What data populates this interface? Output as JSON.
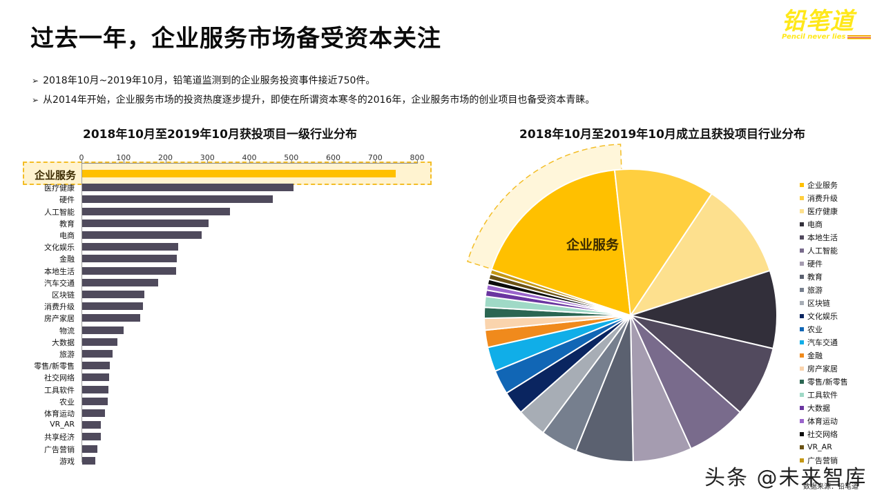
{
  "header": {
    "title": "过去一年，企业服务市场备受资本关注",
    "logo_cn": "铅笔道",
    "logo_en": "Pencil never lies"
  },
  "bullets": [
    "2018年10月~2019年10月，铅笔道监测到的企业服务投资事件接近750件。",
    "从2014年开始，企业服务市场的投资热度逐步提升，即使在所谓资本寒冬的2016年，企业服务市场的创业项目也备受资本青睐。"
  ],
  "bullet_icon": "arrow-bullet-icon",
  "colors": {
    "accent_yellow": "#ffc000",
    "bar_dark": "#4f4a5c",
    "highlight_fill": "#fff0c8",
    "highlight_border": "#f3bd25"
  },
  "chart_data": [
    {
      "type": "bar",
      "orientation": "horizontal",
      "title": "2018年10月至2019年10月获投项目一级行业分布",
      "xlabel": "",
      "ylabel": "",
      "xlim": [
        0,
        800
      ],
      "xticks": [
        0,
        100,
        200,
        300,
        400,
        500,
        600,
        700,
        800
      ],
      "grid": false,
      "axis_position": "top",
      "highlight": "企业服务",
      "categories": [
        "企业服务",
        "医疗健康",
        "硬件",
        "人工智能",
        "教育",
        "电商",
        "文化娱乐",
        "金融",
        "本地生活",
        "汽车交通",
        "区块链",
        "消费升级",
        "房产家居",
        "物流",
        "大数据",
        "旅游",
        "零售/新零售",
        "社交网络",
        "工具软件",
        "农业",
        "体育运动",
        "VR_AR",
        "共享经济",
        "广告营销",
        "游戏"
      ],
      "values": [
        747,
        504,
        455,
        353,
        301,
        285,
        229,
        226,
        224,
        181,
        148,
        145,
        139,
        99,
        84,
        72,
        66,
        65,
        63,
        61,
        55,
        44,
        44,
        37,
        31
      ]
    },
    {
      "type": "pie",
      "title": "2018年10月至2019年10月成立且获投项目行业分布",
      "legend_position": "right",
      "highlight": "企业服务",
      "highlight_label": "企业服务",
      "start_angle_deg": -71.7,
      "categories": [
        "企业服务",
        "消费升级",
        "医疗健康",
        "电商",
        "本地生活",
        "人工智能",
        "硬件",
        "教育",
        "旅游",
        "区块链",
        "文化娱乐",
        "农业",
        "汽车交通",
        "金融",
        "房产家居",
        "零售/新零售",
        "工具软件",
        "大数据",
        "体育运动",
        "社交网络",
        "VR_AR",
        "广告营销"
      ],
      "values": [
        18.2,
        11.1,
        10.7,
        8.6,
        7.9,
        6.7,
        6.5,
        6.4,
        4.1,
        3.3,
        2.6,
        2.7,
        2.7,
        1.9,
        1.3,
        1.2,
        1.2,
        0.7,
        0.6,
        0.6,
        0.6,
        0.5
      ],
      "colors": [
        "#ffc000",
        "#ffcf3f",
        "#fde08e",
        "#322f3a",
        "#524a5e",
        "#796b8c",
        "#a59cb0",
        "#5b6170",
        "#767f8e",
        "#a7adb5",
        "#0a2560",
        "#1166b5",
        "#10aee8",
        "#f08a1c",
        "#fad4ad",
        "#2b6652",
        "#9fd9c6",
        "#6a35a0",
        "#9b65cc",
        "#0b0b0b",
        "#6b5214",
        "#c49714"
      ]
    }
  ],
  "legend": {
    "items": [
      "企业服务",
      "消费升级",
      "医疗健康",
      "电商",
      "本地生活",
      "人工智能",
      "硬件",
      "教育",
      "旅游",
      "区块链",
      "文化娱乐",
      "农业",
      "汽车交通",
      "金融",
      "房产家居",
      "零售/新零售",
      "工具软件",
      "大数据",
      "体育运动",
      "社交网络",
      "VR_AR",
      "广告营销"
    ]
  },
  "footer": {
    "watermark": "头条 @未来智库",
    "source": "数据来源：铅笔道"
  }
}
